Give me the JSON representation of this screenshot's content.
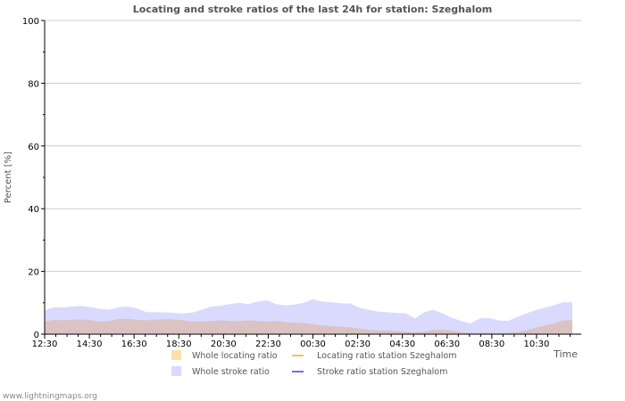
{
  "chart_data": {
    "type": "area",
    "title": "Locating and stroke ratios of the last 24h for station: Szeghalom",
    "xlabel": "Time",
    "ylabel": "Percent   [%]",
    "ylim": [
      0,
      100
    ],
    "yticks": [
      0,
      20,
      40,
      60,
      80,
      100
    ],
    "xtick_labels": [
      "12:30",
      "14:30",
      "16:30",
      "18:30",
      "20:30",
      "22:30",
      "00:30",
      "02:30",
      "04:30",
      "06:30",
      "08:30",
      "10:30"
    ],
    "x_hours_span": [
      0,
      23.6
    ],
    "grid": true,
    "legend_placement": "bottom",
    "series": [
      {
        "name": "Whole locating ratio",
        "style": "area",
        "color": "#ffe0a8",
        "values": [
          4.0,
          4.6,
          4.4,
          4.6,
          4.7,
          4.5,
          4.0,
          4.2,
          4.8,
          4.9,
          4.6,
          4.4,
          4.6,
          4.8,
          4.7,
          4.4,
          4.0,
          4.0,
          4.2,
          4.4,
          4.2,
          4.2,
          4.4,
          4.2,
          4.0,
          4.2,
          3.8,
          3.6,
          3.6,
          3.2,
          2.8,
          2.6,
          2.4,
          2.2,
          1.8,
          1.4,
          1.2,
          1.2,
          1.0,
          0.8,
          0.6,
          0.8,
          1.4,
          1.4,
          1.2,
          0.6,
          0.4,
          0.4,
          0.4,
          0.4,
          0.4,
          0.6,
          1.2,
          2.0,
          2.8,
          3.4,
          4.4,
          4.4
        ]
      },
      {
        "name": "Locating ratio station Szeghalom",
        "style": "line",
        "color": "#f4c060",
        "values": []
      },
      {
        "name": "Whole stroke ratio",
        "style": "area",
        "color": "#dadaff",
        "values": [
          7.6,
          8.6,
          8.5,
          8.8,
          9.0,
          8.6,
          8.0,
          7.8,
          8.6,
          8.8,
          8.2,
          7.0,
          7.0,
          7.0,
          6.8,
          6.6,
          6.9,
          7.8,
          8.8,
          9.0,
          9.6,
          10.0,
          9.6,
          10.4,
          10.8,
          9.6,
          9.2,
          9.4,
          10.0,
          11.2,
          10.4,
          10.2,
          9.8,
          9.8,
          8.4,
          7.8,
          7.2,
          7.0,
          6.8,
          6.6,
          5.0,
          7.0,
          7.8,
          6.6,
          5.2,
          4.2,
          3.4,
          5.0,
          5.2,
          4.4,
          4.2,
          5.4,
          6.6,
          7.6,
          8.4,
          9.2,
          10.2,
          10.2
        ]
      },
      {
        "name": "Stroke ratio station Szeghalom",
        "style": "line",
        "color": "#7070ee",
        "values": []
      }
    ]
  },
  "footer": "www.lightningmaps.org"
}
